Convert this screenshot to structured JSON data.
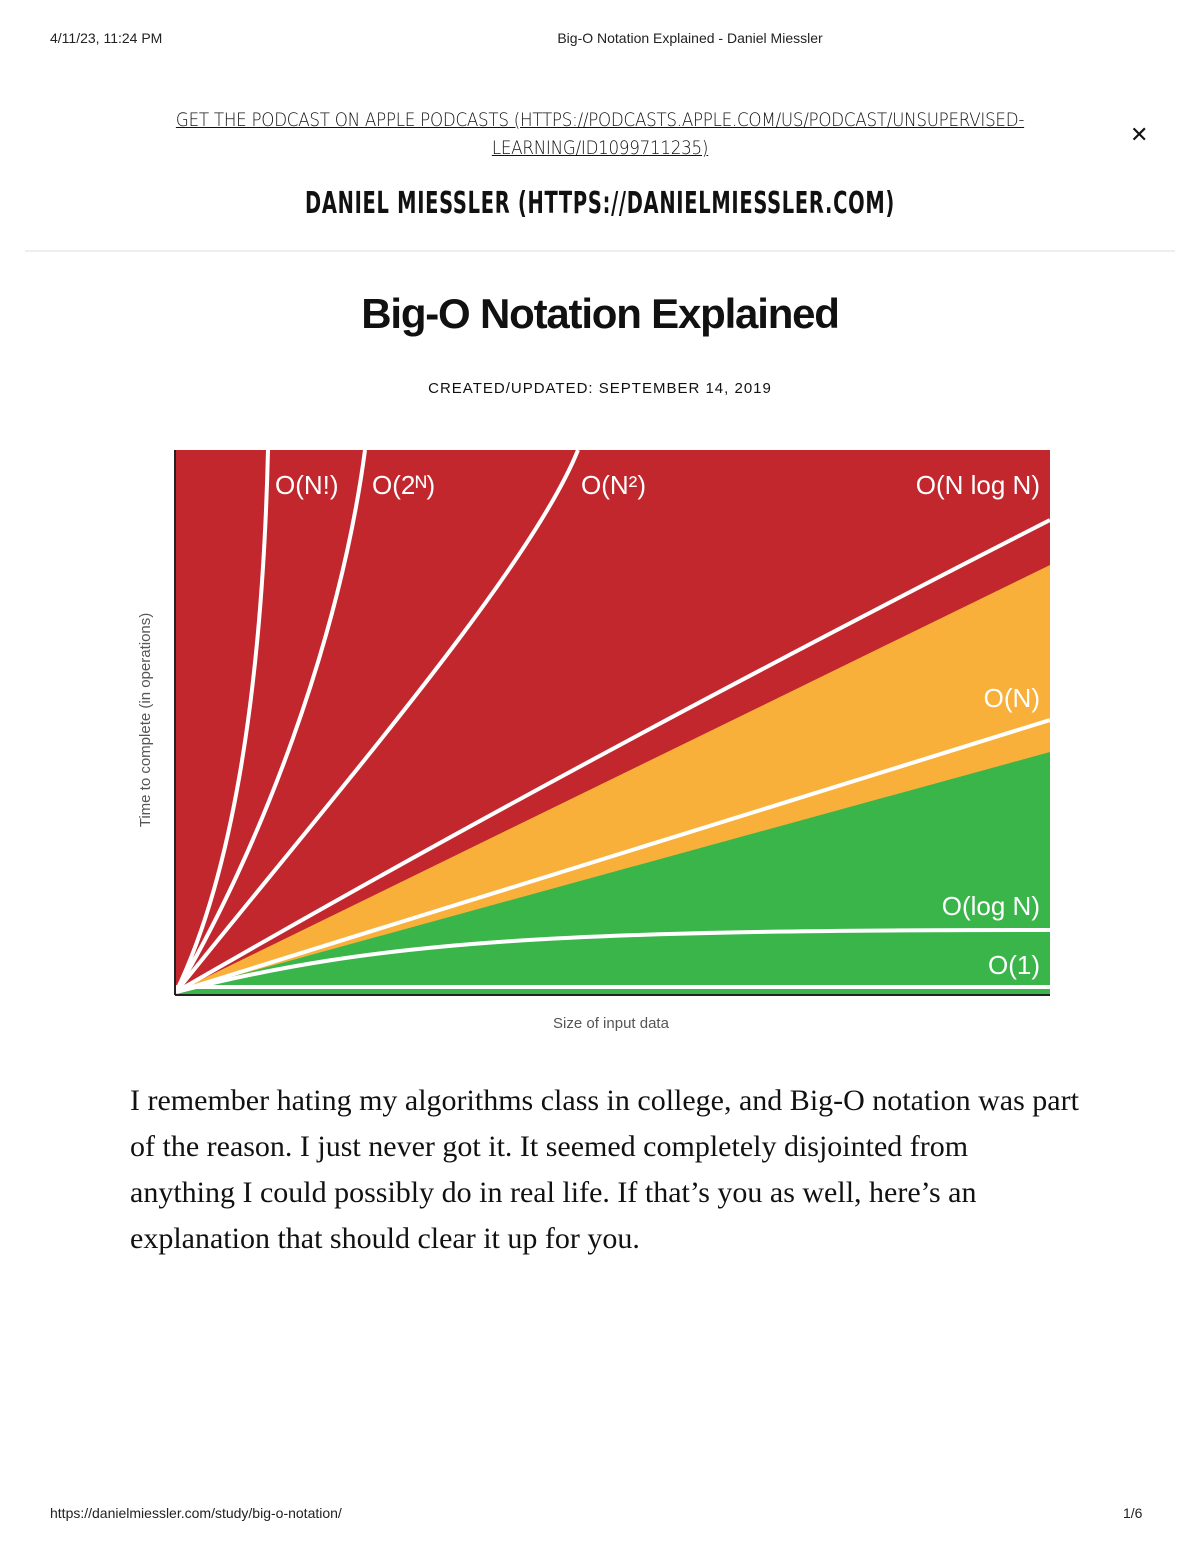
{
  "print_header": {
    "datetime": "4/11/23, 11:24 PM",
    "page_title": "Big-O Notation Explained - Daniel Miessler"
  },
  "banner": {
    "link": "GET THE PODCAST ON APPLE PODCASTS (HTTPS://PODCASTS.APPLE.COM/US/PODCAST/UNSUPERVISED-LEARNING/ID1099711235)",
    "close_icon": "close-icon",
    "close_glyph": "✕"
  },
  "site": {
    "name": "DANIEL MIESSLER (HTTPS://DANIELMIESSLER.COM)"
  },
  "article": {
    "title": "Big-O Notation Explained",
    "date": "CREATED/UPDATED: SEPTEMBER 14, 2019",
    "figure": {
      "ylabel": "Time to complete (in operations)",
      "xlabel": "Size of input data",
      "labels": {
        "factorial": "O(N!)",
        "exponential": "O(2ᴺ)",
        "quadratic": "O(N²)",
        "nlogn": "O(N log N)",
        "linear": "O(N)",
        "log": "O(log N)",
        "constant": "O(1)"
      },
      "colors": {
        "bad": "#c1272d",
        "fair": "#f8b03b",
        "good": "#39b54a",
        "curve": "#ffffff"
      }
    },
    "paragraph": "I remember hating my algorithms class in college, and Big-O notation was part of the reason. I just never got it. It seemed completely disjointed from anything I could possibly do in real life. If that’s you as well, here’s an explanation that should clear it up for you."
  },
  "print_footer": {
    "url": "https://danielmiessler.com/study/big-o-notation/",
    "page": "1/6"
  }
}
